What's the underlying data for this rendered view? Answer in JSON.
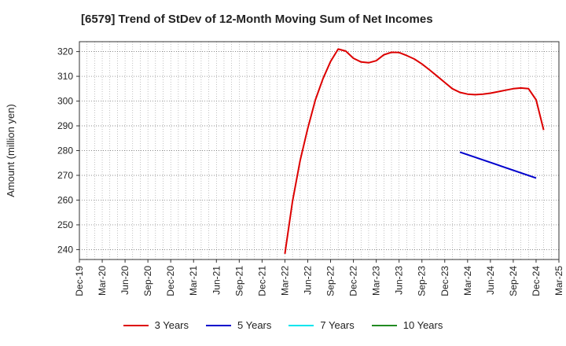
{
  "title": "[6579]  Trend of StDev of 12-Month Moving Sum of Net Incomes",
  "chart_data": {
    "type": "line",
    "title": "[6579]  Trend of StDev of 12-Month Moving Sum of Net Incomes",
    "xlabel": "",
    "ylabel": "Amount (million yen)",
    "ylim": [
      236,
      324
    ],
    "yticks": [
      240,
      250,
      260,
      270,
      280,
      290,
      300,
      310,
      320
    ],
    "xlim": [
      "2019-12",
      "2025-03"
    ],
    "xtick_labels": [
      "Dec-19",
      "Mar-20",
      "Jun-20",
      "Sep-20",
      "Dec-20",
      "Mar-21",
      "Jun-21",
      "Sep-21",
      "Dec-21",
      "Mar-22",
      "Jun-22",
      "Sep-22",
      "Dec-22",
      "Mar-23",
      "Jun-23",
      "Sep-23",
      "Dec-23",
      "Mar-24",
      "Jun-24",
      "Sep-24",
      "Dec-24",
      "Mar-25"
    ],
    "grid": true,
    "legend_position": "bottom",
    "series": [
      {
        "name": "3 Years",
        "color": "#dd0000",
        "points": [
          [
            "2022-03",
            238.3
          ],
          [
            "2022-04",
            259.5
          ],
          [
            "2022-05",
            276.0
          ],
          [
            "2022-06",
            289.0
          ],
          [
            "2022-07",
            300.5
          ],
          [
            "2022-08",
            309.0
          ],
          [
            "2022-09",
            316.0
          ],
          [
            "2022-10",
            321.0
          ],
          [
            "2022-11",
            320.2
          ],
          [
            "2022-12",
            317.3
          ],
          [
            "2023-01",
            315.8
          ],
          [
            "2023-02",
            315.5
          ],
          [
            "2023-03",
            316.3
          ],
          [
            "2023-04",
            318.7
          ],
          [
            "2023-05",
            319.7
          ],
          [
            "2023-06",
            319.6
          ],
          [
            "2023-07",
            318.4
          ],
          [
            "2023-08",
            317.0
          ],
          [
            "2023-09",
            315.0
          ],
          [
            "2023-10",
            312.6
          ],
          [
            "2023-11",
            310.1
          ],
          [
            "2023-12",
            307.5
          ],
          [
            "2024-01",
            305.0
          ],
          [
            "2024-02",
            303.5
          ],
          [
            "2024-03",
            302.8
          ],
          [
            "2024-04",
            302.6
          ],
          [
            "2024-05",
            302.8
          ],
          [
            "2024-06",
            303.2
          ],
          [
            "2024-07",
            303.8
          ],
          [
            "2024-08",
            304.4
          ],
          [
            "2024-09",
            305.0
          ],
          [
            "2024-10",
            305.3
          ],
          [
            "2024-11",
            305.0
          ],
          [
            "2024-12",
            300.5
          ],
          [
            "2025-01",
            288.3
          ]
        ]
      },
      {
        "name": "5 Years",
        "color": "#0000cc",
        "points": [
          [
            "2024-02",
            279.4
          ],
          [
            "2024-12",
            268.9
          ]
        ]
      },
      {
        "name": "7 Years",
        "color": "#00e5ee",
        "points": []
      },
      {
        "name": "10 Years",
        "color": "#228b22",
        "points": []
      }
    ]
  }
}
